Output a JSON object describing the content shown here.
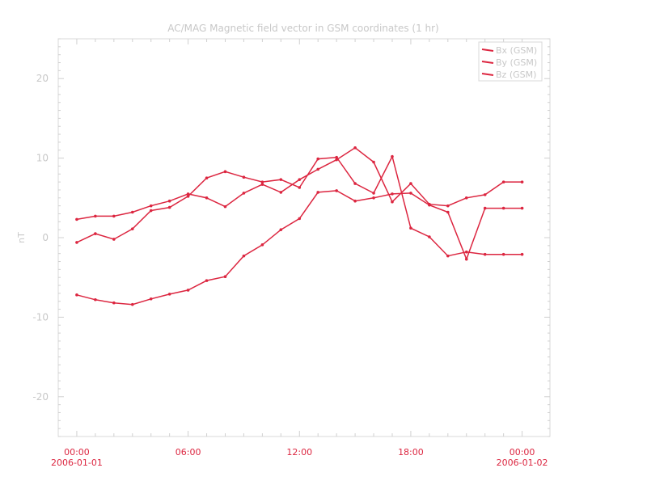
{
  "chart_data": {
    "type": "line",
    "title": "AC/MAG  Magnetic field vector in GSM coordinates (1 hr)",
    "ylabel": "nT",
    "xlabel": "",
    "ylim": [
      -25,
      25
    ],
    "yticks": [
      -20,
      -10,
      0,
      10,
      20
    ],
    "y_tick_labels": [
      "-20",
      "-10",
      "0",
      "10",
      "20"
    ],
    "x_tick_labels": [
      {
        "time": "00:00",
        "date": "2006-01-01"
      },
      {
        "time": "06:00",
        "date": ""
      },
      {
        "time": "12:00",
        "date": ""
      },
      {
        "time": "18:00",
        "date": ""
      },
      {
        "time": "00:00",
        "date": "2006-01-02"
      }
    ],
    "x_unit": "hours from 2006-01-01 00:00",
    "xlim": [
      -1,
      25.5
    ],
    "x": [
      0,
      1,
      2,
      3,
      4,
      5,
      6,
      7,
      8,
      9,
      10,
      11,
      12,
      13,
      14,
      15,
      16,
      17,
      18,
      19,
      20,
      21,
      22,
      23,
      24
    ],
    "legend_position": "top-right",
    "grid": false,
    "color": "#dc2640",
    "series": [
      {
        "name": "Bx (GSM)",
        "values": [
          2.3,
          2.7,
          2.7,
          3.2,
          4.0,
          4.6,
          5.5,
          5.0,
          3.9,
          5.6,
          6.7,
          5.7,
          7.3,
          8.6,
          9.8,
          11.3,
          9.5,
          4.5,
          6.8,
          4.2,
          4.0,
          5.0,
          5.4,
          7.0,
          7.0
        ]
      },
      {
        "name": "By (GSM)",
        "values": [
          -0.6,
          0.5,
          -0.2,
          1.1,
          3.4,
          3.8,
          5.2,
          7.5,
          8.3,
          7.6,
          7.0,
          7.3,
          6.3,
          9.9,
          10.1,
          6.8,
          5.6,
          10.2,
          1.2,
          0.1,
          -2.3,
          -1.8,
          -2.1,
          -2.1,
          -2.1
        ]
      },
      {
        "name": "Bz (GSM)",
        "values": [
          -7.2,
          -7.8,
          -8.2,
          -8.4,
          -7.7,
          -7.1,
          -6.6,
          -5.4,
          -4.9,
          -2.3,
          -0.9,
          1.0,
          2.4,
          5.7,
          5.9,
          4.6,
          5.0,
          5.5,
          5.6,
          4.1,
          3.2,
          -2.7,
          3.7,
          3.7,
          3.7
        ]
      }
    ]
  }
}
